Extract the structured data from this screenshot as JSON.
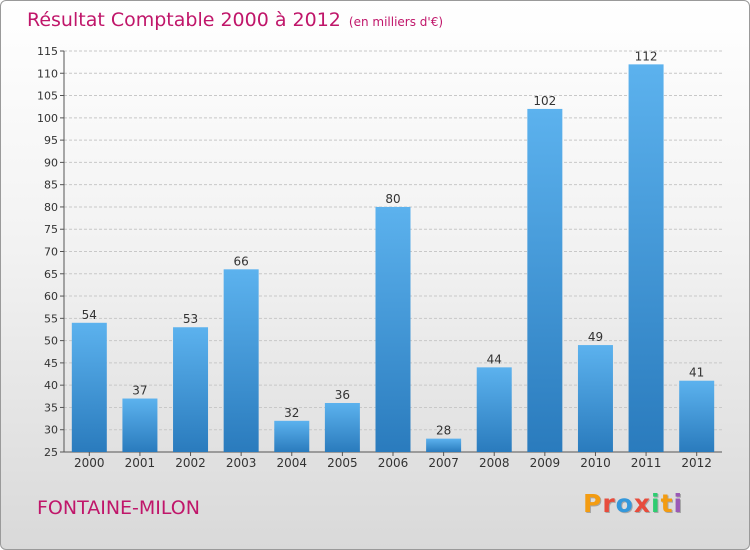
{
  "title": "Résultat Comptable 2000 à 2012",
  "subtitle": "(en milliers d'€)",
  "commune": "FONTAINE-MILON",
  "logo": {
    "letters": [
      "P",
      "r",
      "o",
      "x",
      "i",
      "t",
      "i"
    ],
    "colors": [
      "#f39c12",
      "#e74c3c",
      "#3498db",
      "#e74c3c",
      "#2ecc71",
      "#f39c12",
      "#9b59b6"
    ]
  },
  "chart_data": {
    "type": "bar",
    "categories": [
      "2000",
      "2001",
      "2002",
      "2003",
      "2004",
      "2005",
      "2006",
      "2007",
      "2008",
      "2009",
      "2010",
      "2011",
      "2012"
    ],
    "values": [
      54,
      37,
      53,
      66,
      32,
      36,
      80,
      28,
      44,
      102,
      49,
      112,
      41
    ],
    "ylim": [
      25,
      115
    ],
    "yticks": [
      25,
      30,
      35,
      40,
      45,
      50,
      55,
      60,
      65,
      70,
      75,
      80,
      85,
      90,
      95,
      100,
      105,
      110,
      115
    ],
    "grid": true,
    "bar_color": "#4a9ad8"
  }
}
